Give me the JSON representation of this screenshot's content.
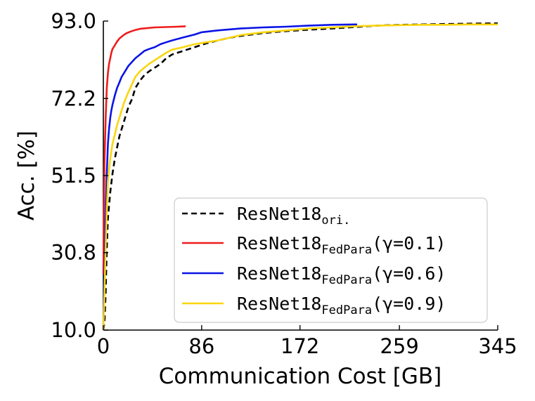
{
  "chart_data": {
    "type": "line",
    "title": "",
    "xlabel": "Communication Cost [GB]",
    "ylabel": "Acc. [%]",
    "xlim": [
      0,
      345
    ],
    "ylim": [
      10.0,
      93.0
    ],
    "x_ticks": [
      {
        "value": 0,
        "label": "0"
      },
      {
        "value": 86,
        "label": "86"
      },
      {
        "value": 172,
        "label": "172"
      },
      {
        "value": 259,
        "label": "259"
      },
      {
        "value": 345,
        "label": "345"
      }
    ],
    "y_ticks": [
      {
        "value": 10.0,
        "label": "10.0"
      },
      {
        "value": 30.8,
        "label": "30.8"
      },
      {
        "value": 51.5,
        "label": "51.5"
      },
      {
        "value": 72.2,
        "label": "72.2"
      },
      {
        "value": 93.0,
        "label": "93.0"
      }
    ],
    "grid": false,
    "legend_position": "lower-right",
    "series": [
      {
        "name": "ResNet18",
        "subscript": "ori.",
        "color": "#000000",
        "dash": true,
        "points": [
          [
            0,
            10
          ],
          [
            1,
            12
          ],
          [
            2,
            20
          ],
          [
            3,
            32
          ],
          [
            4,
            40
          ],
          [
            6,
            47
          ],
          [
            8,
            52
          ],
          [
            10,
            56
          ],
          [
            12,
            59
          ],
          [
            14,
            62
          ],
          [
            16,
            64
          ],
          [
            18,
            66
          ],
          [
            20,
            68
          ],
          [
            22,
            70
          ],
          [
            25,
            72
          ],
          [
            28,
            75
          ],
          [
            32,
            77
          ],
          [
            36,
            78.5
          ],
          [
            40,
            79.5
          ],
          [
            45,
            80.5
          ],
          [
            50,
            81.5
          ],
          [
            55,
            83
          ],
          [
            60,
            84
          ],
          [
            70,
            85
          ],
          [
            80,
            86
          ],
          [
            90,
            87
          ],
          [
            100,
            87.8
          ],
          [
            110,
            88.5
          ],
          [
            120,
            89
          ],
          [
            140,
            89.8
          ],
          [
            160,
            90.3
          ],
          [
            180,
            90.7
          ],
          [
            200,
            91
          ],
          [
            220,
            91.4
          ],
          [
            240,
            91.8
          ],
          [
            260,
            92
          ],
          [
            280,
            92.1
          ],
          [
            300,
            92.2
          ],
          [
            320,
            92.3
          ],
          [
            345,
            92.4
          ]
        ]
      },
      {
        "name": "ResNet18",
        "subscript": "FedPara",
        "suffix": "(γ=0.1)",
        "color": "#ee1c1c",
        "dash": false,
        "points": [
          [
            0,
            25
          ],
          [
            0.5,
            40
          ],
          [
            1,
            55
          ],
          [
            2,
            67
          ],
          [
            3,
            75
          ],
          [
            4,
            79
          ],
          [
            5,
            81.5
          ],
          [
            6,
            83
          ],
          [
            7,
            84.5
          ],
          [
            8,
            85.5
          ],
          [
            10,
            86.5
          ],
          [
            12,
            87.5
          ],
          [
            14,
            88.3
          ],
          [
            16,
            88.8
          ],
          [
            18,
            89.3
          ],
          [
            20,
            89.7
          ],
          [
            24,
            90.2
          ],
          [
            28,
            90.6
          ],
          [
            32,
            90.9
          ],
          [
            38,
            91.1
          ],
          [
            45,
            91.3
          ],
          [
            55,
            91.4
          ],
          [
            65,
            91.5
          ],
          [
            72,
            91.6
          ]
        ]
      },
      {
        "name": "ResNet18",
        "subscript": "FedPara",
        "suffix": "(γ=0.6)",
        "color": "#0a14e6",
        "dash": false,
        "points": [
          [
            0,
            10
          ],
          [
            1,
            25
          ],
          [
            2,
            40
          ],
          [
            3,
            52
          ],
          [
            4,
            60
          ],
          [
            5,
            64
          ],
          [
            6,
            67
          ],
          [
            7,
            69
          ],
          [
            8,
            70.5
          ],
          [
            10,
            73
          ],
          [
            12,
            75
          ],
          [
            14,
            76.5
          ],
          [
            16,
            78
          ],
          [
            18,
            79
          ],
          [
            20,
            80
          ],
          [
            22,
            81
          ],
          [
            25,
            82
          ],
          [
            28,
            83
          ],
          [
            32,
            84
          ],
          [
            36,
            85
          ],
          [
            40,
            85.5
          ],
          [
            45,
            86
          ],
          [
            50,
            86.8
          ],
          [
            55,
            87.3
          ],
          [
            60,
            87.8
          ],
          [
            70,
            88.6
          ],
          [
            80,
            89.4
          ],
          [
            86,
            90
          ],
          [
            100,
            90.5
          ],
          [
            120,
            91
          ],
          [
            140,
            91.3
          ],
          [
            160,
            91.5
          ],
          [
            180,
            91.8
          ],
          [
            200,
            92
          ],
          [
            220,
            92.1
          ],
          [
            222,
            92.1
          ]
        ]
      },
      {
        "name": "ResNet18",
        "subscript": "FedPara",
        "suffix": "(γ=0.9)",
        "color": "#fad60e",
        "dash": false,
        "points": [
          [
            0,
            10
          ],
          [
            1,
            20
          ],
          [
            2,
            32
          ],
          [
            3,
            42
          ],
          [
            4,
            50
          ],
          [
            6,
            56
          ],
          [
            8,
            60
          ],
          [
            10,
            62.5
          ],
          [
            12,
            65
          ],
          [
            14,
            67
          ],
          [
            16,
            69
          ],
          [
            18,
            71
          ],
          [
            20,
            72.5
          ],
          [
            22,
            74
          ],
          [
            25,
            76
          ],
          [
            28,
            78
          ],
          [
            32,
            79.5
          ],
          [
            36,
            80.5
          ],
          [
            40,
            81.5
          ],
          [
            45,
            82.5
          ],
          [
            50,
            83.5
          ],
          [
            55,
            84.5
          ],
          [
            60,
            85.3
          ],
          [
            70,
            86
          ],
          [
            80,
            86.8
          ],
          [
            90,
            87.3
          ],
          [
            100,
            87.8
          ],
          [
            110,
            88.5
          ],
          [
            120,
            89.2
          ],
          [
            140,
            90
          ],
          [
            160,
            90.5
          ],
          [
            180,
            91
          ],
          [
            200,
            91.3
          ],
          [
            220,
            91.6
          ],
          [
            240,
            91.8
          ],
          [
            260,
            91.9
          ],
          [
            280,
            92
          ],
          [
            300,
            92
          ],
          [
            320,
            92.1
          ],
          [
            345,
            92.1
          ]
        ]
      }
    ]
  }
}
